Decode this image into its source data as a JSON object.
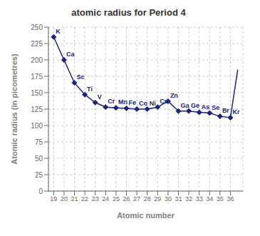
{
  "chart_data": {
    "type": "line",
    "title": "atomic radius for Period 4",
    "x_label": "Atomic number",
    "y_label": "Atomic radius (in picometres)",
    "xlim": [
      18.5,
      37.2
    ],
    "xticks": [
      19,
      20,
      21,
      22,
      23,
      24,
      25,
      26,
      27,
      28,
      29,
      30,
      31,
      32,
      33,
      34,
      35,
      36
    ],
    "ylim": [
      0,
      250
    ],
    "yticks": [
      0,
      25,
      50,
      75,
      100,
      125,
      150,
      175,
      200,
      225,
      250
    ],
    "grid": true,
    "series": [
      {
        "x": [
          19,
          20,
          21,
          22,
          23,
          24,
          25,
          26,
          27,
          28,
          29,
          30,
          31,
          32,
          33,
          34,
          35,
          36
        ],
        "values": [
          235,
          200,
          165,
          147,
          135,
          128,
          127,
          126,
          125,
          125,
          128,
          137,
          122,
          122,
          120,
          119,
          114,
          112
        ],
        "point_labels": [
          "K",
          "Ca",
          "Sc",
          "Ti",
          "V",
          "Cr",
          "Mn",
          "Fe",
          "Co",
          "Ni",
          "Cu",
          "Zn",
          "Ga",
          "Ge",
          "As",
          "Se",
          "Br",
          "Kr"
        ],
        "color": "#1a237e",
        "marker": "diamond"
      },
      {
        "x": [
          36,
          36.7
        ],
        "values": [
          112,
          185
        ],
        "color": "#1a237e",
        "marker": "none"
      }
    ]
  }
}
